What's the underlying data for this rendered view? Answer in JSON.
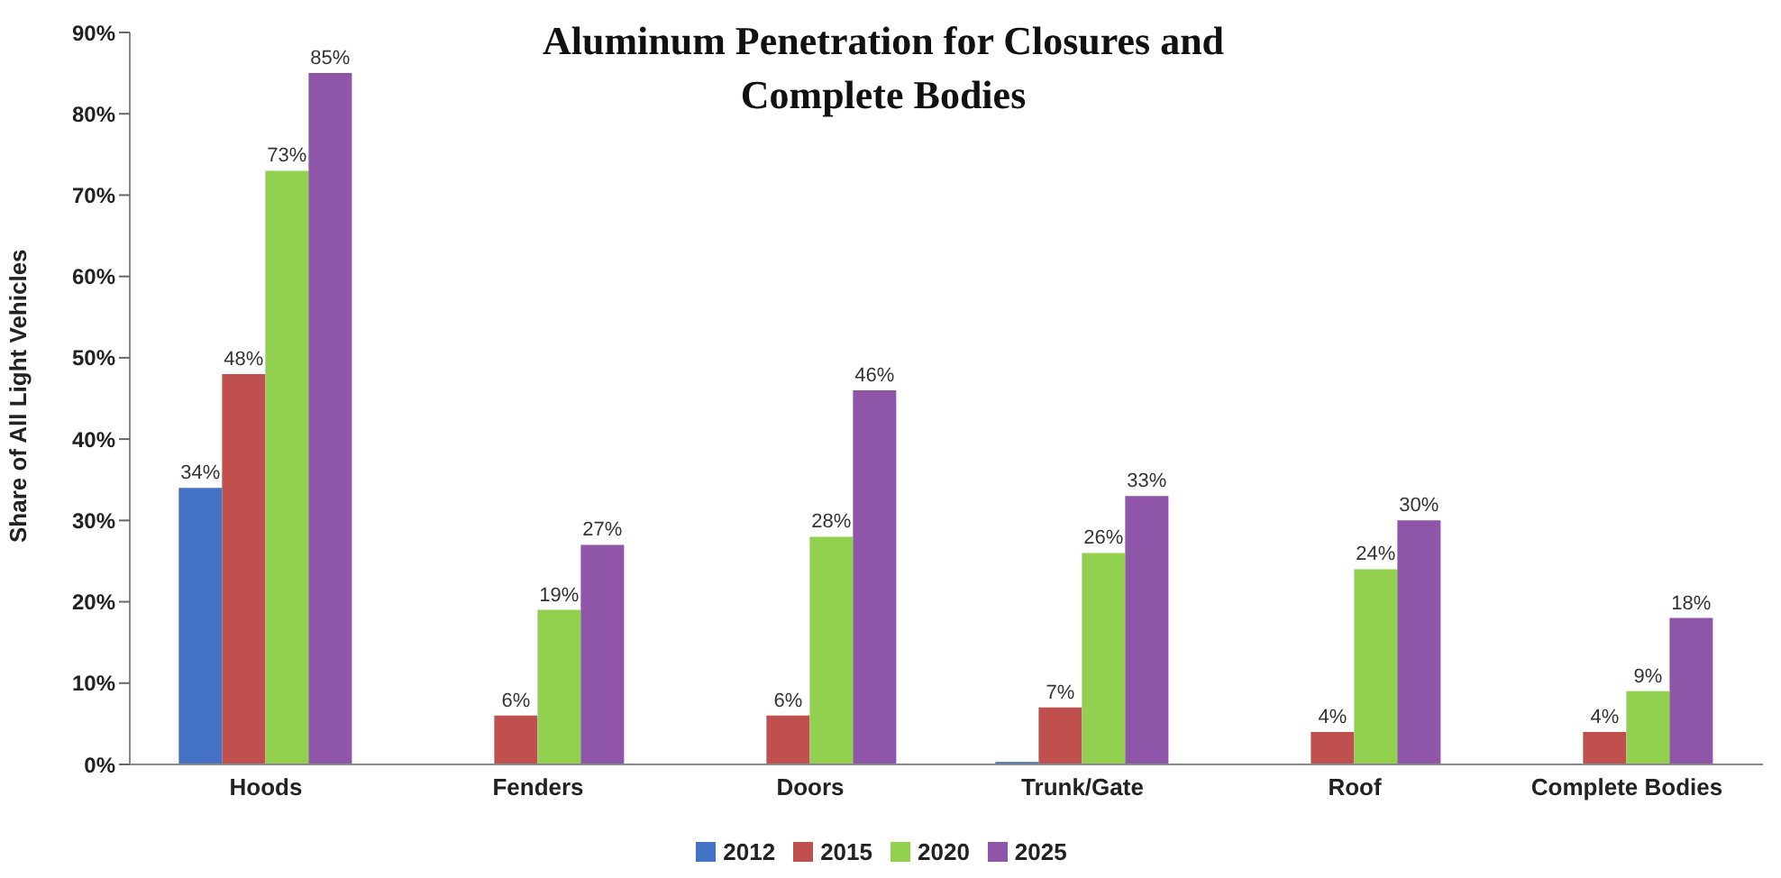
{
  "chart_data": {
    "type": "bar",
    "title": "Aluminum Penetration for Closures and Complete Bodies",
    "ylabel": "Share of All Light Vehicles",
    "categories": [
      "Hoods",
      "Fenders",
      "Doors",
      "Trunk/Gate",
      "Roof",
      "Complete Bodies"
    ],
    "series": [
      {
        "name": "2012",
        "color": "#4472c4",
        "values": [
          34,
          null,
          null,
          0.3,
          null,
          null
        ],
        "value_labels": [
          "34%",
          null,
          null,
          null,
          null,
          null
        ]
      },
      {
        "name": "2015",
        "color": "#c0504d",
        "values": [
          48,
          6,
          6,
          7,
          4,
          4
        ],
        "value_labels": [
          "48%",
          "6%",
          "6%",
          "7%",
          "4%",
          "4%"
        ]
      },
      {
        "name": "2020",
        "color": "#92d050",
        "values": [
          73,
          19,
          28,
          26,
          24,
          9
        ],
        "value_labels": [
          "73%",
          "19%",
          "28%",
          "26%",
          "24%",
          "9%"
        ]
      },
      {
        "name": "2025",
        "color": "#8e55a8",
        "values": [
          85,
          27,
          46,
          33,
          30,
          18
        ],
        "value_labels": [
          "85%",
          "27%",
          "46%",
          "33%",
          "30%",
          "18%"
        ]
      }
    ],
    "ylim": [
      0,
      90
    ],
    "yticks": [
      {
        "value": 0,
        "label": "0%"
      },
      {
        "value": 10,
        "label": "10%"
      },
      {
        "value": 20,
        "label": "20%"
      },
      {
        "value": 30,
        "label": "30%"
      },
      {
        "value": 40,
        "label": "40%"
      },
      {
        "value": 50,
        "label": "50%"
      },
      {
        "value": 60,
        "label": "60%"
      },
      {
        "value": 70,
        "label": "70%"
      },
      {
        "value": 80,
        "label": "80%"
      },
      {
        "value": 90,
        "label": "90%"
      }
    ],
    "grid": false,
    "legend": "bottom"
  }
}
